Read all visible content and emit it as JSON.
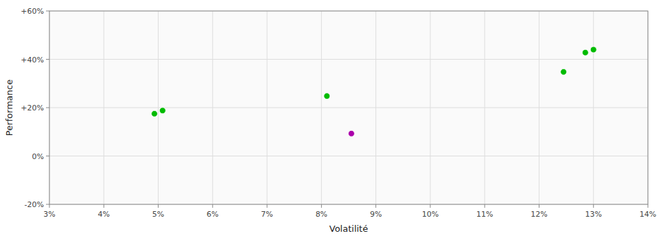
{
  "chart_data": {
    "type": "scatter",
    "xlabel": "Volatilité",
    "ylabel": "Performance",
    "x": [
      0.0493,
      0.0508,
      0.081,
      0.0855,
      0.1245,
      0.1285,
      0.13
    ],
    "values": [
      0.175,
      0.188,
      0.248,
      0.093,
      0.348,
      0.428,
      0.44
    ],
    "colors": [
      "#00bb00",
      "#00bb00",
      "#00bb00",
      "#aa00aa",
      "#00bb00",
      "#00bb00",
      "#00bb00"
    ],
    "xlim": [
      0.03,
      0.14
    ],
    "ylim": [
      -0.2,
      0.6
    ],
    "xticks": [
      {
        "value": 0.03,
        "label": "3%"
      },
      {
        "value": 0.04,
        "label": "4%"
      },
      {
        "value": 0.05,
        "label": "5%"
      },
      {
        "value": 0.06,
        "label": "6%"
      },
      {
        "value": 0.07,
        "label": "7%"
      },
      {
        "value": 0.08,
        "label": "8%"
      },
      {
        "value": 0.09,
        "label": "9%"
      },
      {
        "value": 0.1,
        "label": "10%"
      },
      {
        "value": 0.11,
        "label": "11%"
      },
      {
        "value": 0.12,
        "label": "12%"
      },
      {
        "value": 0.13,
        "label": "13%"
      },
      {
        "value": 0.14,
        "label": "14%"
      }
    ],
    "yticks": [
      {
        "value": -0.2,
        "label": "-20%"
      },
      {
        "value": 0.0,
        "label": "0%"
      },
      {
        "value": 0.2,
        "label": "+20%"
      },
      {
        "value": 0.4,
        "label": "+40%"
      },
      {
        "value": 0.6,
        "label": "+60%"
      }
    ],
    "grid": true
  }
}
